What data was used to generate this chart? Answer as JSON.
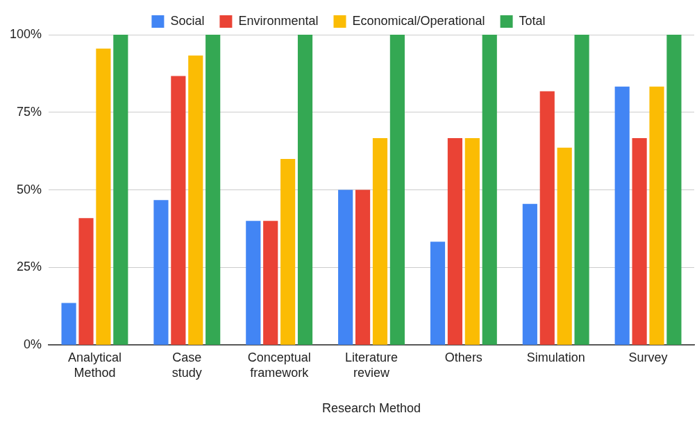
{
  "chart_data": {
    "type": "bar",
    "xlabel": "Research Method",
    "categories": [
      "Analytical Method",
      "Case study",
      "Conceptual framework",
      "Literature review",
      "Others",
      "Simulation",
      "Survey"
    ],
    "series": [
      {
        "name": "Social",
        "color": "#4285f4",
        "values": [
          13.6,
          46.7,
          40,
          50,
          33.3,
          45.5,
          83.3
        ]
      },
      {
        "name": "Environmental",
        "color": "#ea4335",
        "values": [
          40.9,
          86.7,
          40,
          50,
          66.7,
          81.8,
          66.7
        ]
      },
      {
        "name": "Economical/Operational",
        "color": "#fbbc04",
        "values": [
          95.5,
          93.3,
          60,
          66.7,
          66.7,
          63.6,
          83.3
        ]
      },
      {
        "name": "Total",
        "color": "#34a853",
        "values": [
          100,
          100,
          100,
          100,
          100,
          100,
          100
        ]
      }
    ],
    "ylim": [
      0,
      100
    ],
    "yticks": [
      {
        "value": 0,
        "label": "0%"
      },
      {
        "value": 25,
        "label": "25%"
      },
      {
        "value": 50,
        "label": "50%"
      },
      {
        "value": 75,
        "label": "75%"
      },
      {
        "value": 100,
        "label": "100%"
      }
    ],
    "grid": "y",
    "legend": "top"
  }
}
